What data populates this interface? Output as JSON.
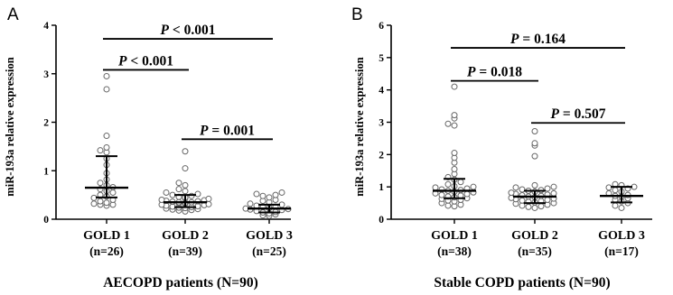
{
  "chart_data": [
    {
      "type": "scatter",
      "panel_label": "A",
      "xlabel": "AECOPD patients (N=90)",
      "ylabel": "miR-193a relative expression",
      "ylim": [
        0,
        4
      ],
      "yticks": [
        "0",
        "1",
        "2",
        "3",
        "4"
      ],
      "grid": false,
      "categories": [
        {
          "name": "GOLD 1",
          "n_label": "(n=26)",
          "median": 0.65,
          "lower": 0.45,
          "upper": 1.3,
          "values": [
            2.95,
            2.68,
            1.72,
            1.48,
            1.42,
            1.38,
            1.25,
            1.12,
            0.95,
            0.82,
            0.75,
            0.7,
            0.66,
            0.62,
            0.58,
            0.55,
            0.5,
            0.47,
            0.44,
            0.4,
            0.37,
            0.34,
            0.32,
            0.3,
            0.3,
            0.28
          ]
        },
        {
          "name": "GOLD 2",
          "n_label": "(n=39)",
          "median": 0.35,
          "lower": 0.25,
          "upper": 0.5,
          "values": [
            1.4,
            1.05,
            0.75,
            0.7,
            0.62,
            0.58,
            0.55,
            0.52,
            0.5,
            0.48,
            0.46,
            0.45,
            0.43,
            0.42,
            0.4,
            0.39,
            0.38,
            0.37,
            0.36,
            0.35,
            0.35,
            0.34,
            0.33,
            0.32,
            0.31,
            0.3,
            0.29,
            0.28,
            0.27,
            0.26,
            0.25,
            0.24,
            0.23,
            0.22,
            0.21,
            0.2,
            0.19,
            0.18,
            0.16
          ]
        },
        {
          "name": "GOLD 3",
          "n_label": "(n=25)",
          "median": 0.22,
          "lower": 0.14,
          "upper": 0.3,
          "values": [
            0.55,
            0.52,
            0.5,
            0.48,
            0.45,
            0.4,
            0.38,
            0.35,
            0.32,
            0.3,
            0.28,
            0.26,
            0.25,
            0.23,
            0.22,
            0.21,
            0.2,
            0.19,
            0.17,
            0.15,
            0.14,
            0.12,
            0.1,
            0.08,
            0.07
          ]
        }
      ],
      "comparisons": [
        {
          "from": 0,
          "to": 1,
          "y": 3.08,
          "label": "P < 0.001"
        },
        {
          "from": 1,
          "to": 2,
          "y": 1.65,
          "label": "P = 0.001"
        },
        {
          "from": 0,
          "to": 2,
          "y": 3.72,
          "label": "P < 0.001"
        }
      ]
    },
    {
      "type": "scatter",
      "panel_label": "B",
      "xlabel": "Stable COPD patients (N=90)",
      "ylabel": "miR-193a relative expression",
      "ylim": [
        0,
        6
      ],
      "yticks": [
        "0",
        "1",
        "2",
        "3",
        "4",
        "5",
        "6"
      ],
      "grid": false,
      "categories": [
        {
          "name": "GOLD 1",
          "n_label": "(n=38)",
          "median": 0.88,
          "lower": 0.65,
          "upper": 1.25,
          "values": [
            4.1,
            3.22,
            3.12,
            2.95,
            2.9,
            2.05,
            1.9,
            1.75,
            1.55,
            1.4,
            1.3,
            1.22,
            1.15,
            1.08,
            1.02,
            1.0,
            0.98,
            0.95,
            0.92,
            0.9,
            0.88,
            0.85,
            0.83,
            0.8,
            0.78,
            0.75,
            0.73,
            0.7,
            0.68,
            0.65,
            0.63,
            0.6,
            0.58,
            0.55,
            0.5,
            0.45,
            0.42,
            0.4
          ]
        },
        {
          "name": "GOLD 2",
          "n_label": "(n=35)",
          "median": 0.7,
          "lower": 0.5,
          "upper": 0.88,
          "values": [
            2.72,
            2.35,
            2.28,
            1.95,
            1.05,
            1.0,
            0.98,
            0.95,
            0.92,
            0.9,
            0.88,
            0.85,
            0.82,
            0.8,
            0.78,
            0.76,
            0.74,
            0.72,
            0.7,
            0.68,
            0.66,
            0.64,
            0.62,
            0.6,
            0.58,
            0.56,
            0.54,
            0.52,
            0.5,
            0.48,
            0.45,
            0.42,
            0.4,
            0.38,
            0.35
          ]
        },
        {
          "name": "GOLD 3",
          "n_label": "(n=17)",
          "median": 0.72,
          "lower": 0.52,
          "upper": 1.0,
          "values": [
            1.08,
            1.05,
            1.0,
            0.98,
            0.95,
            0.9,
            0.85,
            0.8,
            0.75,
            0.72,
            0.7,
            0.65,
            0.6,
            0.55,
            0.5,
            0.42,
            0.35
          ]
        }
      ],
      "comparisons": [
        {
          "from": 0,
          "to": 1,
          "y": 4.28,
          "label": "P = 0.018"
        },
        {
          "from": 1,
          "to": 2,
          "y": 2.98,
          "label": "P = 0.507"
        },
        {
          "from": 0,
          "to": 2,
          "y": 5.3,
          "label": "P = 0.164"
        }
      ]
    }
  ]
}
